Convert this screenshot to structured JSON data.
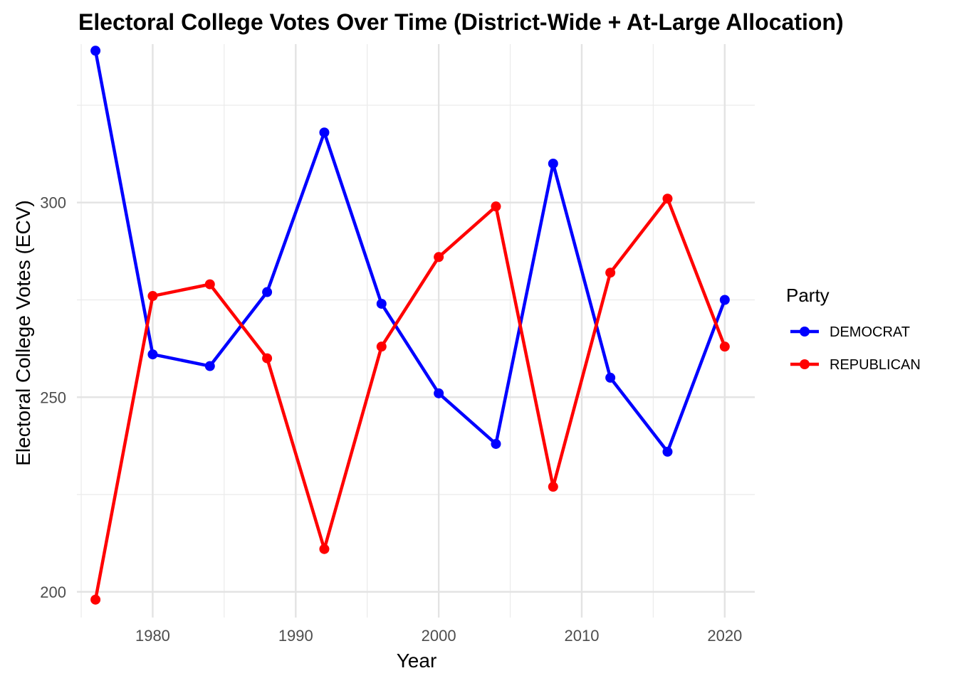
{
  "chart_data": {
    "type": "line",
    "title": "Electoral College Votes Over Time (District-Wide + At-Large Allocation)",
    "xlabel": "Year",
    "ylabel": "Electoral College Votes (ECV)",
    "x": [
      1976,
      1980,
      1984,
      1988,
      1992,
      1996,
      2000,
      2004,
      2008,
      2012,
      2016,
      2020
    ],
    "xlim": [
      1974.7,
      2022.1
    ],
    "ylim": [
      193.4,
      340.7
    ],
    "x_ticks": [
      1980,
      1990,
      2000,
      2010,
      2020
    ],
    "y_ticks": [
      200,
      250,
      300
    ],
    "grid": true,
    "legend": {
      "title": "Party",
      "position": "right"
    },
    "series": [
      {
        "name": "DEMOCRAT",
        "color": "#0000FF",
        "values": [
          339,
          261,
          258,
          277,
          318,
          274,
          251,
          238,
          310,
          255,
          236,
          275
        ]
      },
      {
        "name": "REPUBLICAN",
        "color": "#FF0000",
        "values": [
          198,
          276,
          279,
          260,
          211,
          263,
          286,
          299,
          227,
          282,
          301,
          263
        ]
      }
    ]
  }
}
